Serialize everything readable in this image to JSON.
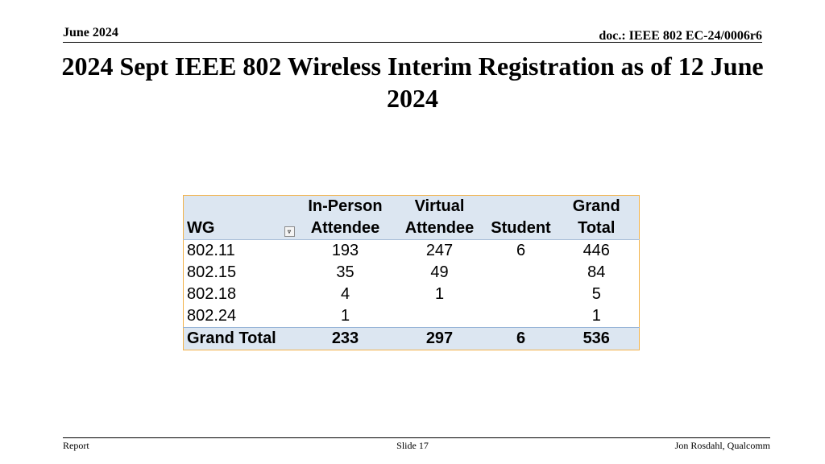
{
  "header": {
    "date": "June 2024",
    "doc_id": "doc.: IEEE 802 EC-24/0006r6"
  },
  "title": "2024 Sept IEEE 802 Wireless Interim Registration as of 12 June 2024",
  "table": {
    "headers": {
      "wg": "WG",
      "in_person_1": "In-Person",
      "in_person_2": "Attendee",
      "virtual_1": "Virtual",
      "virtual_2": "Attendee",
      "student": "Student",
      "grand_total_1": "Grand",
      "grand_total_2": "Total"
    },
    "rows": [
      {
        "wg": "802.11",
        "in_person": "193",
        "virtual": "247",
        "student": "6",
        "total": "446"
      },
      {
        "wg": "802.15",
        "in_person": "35",
        "virtual": "49",
        "student": "",
        "total": "84"
      },
      {
        "wg": "802.18",
        "in_person": "4",
        "virtual": "1",
        "student": "",
        "total": "5"
      },
      {
        "wg": "802.24",
        "in_person": "1",
        "virtual": "",
        "student": "",
        "total": "1"
      }
    ],
    "grand_total": {
      "wg": "Grand Total",
      "in_person": "233",
      "virtual": "297",
      "student": "6",
      "total": "536"
    }
  },
  "footer": {
    "left": "Report",
    "center": "Slide 17",
    "right": "Jon Rosdahl, Qualcomm"
  },
  "colors": {
    "header_fill": "#dce6f1",
    "table_border": "#f2b24a"
  }
}
